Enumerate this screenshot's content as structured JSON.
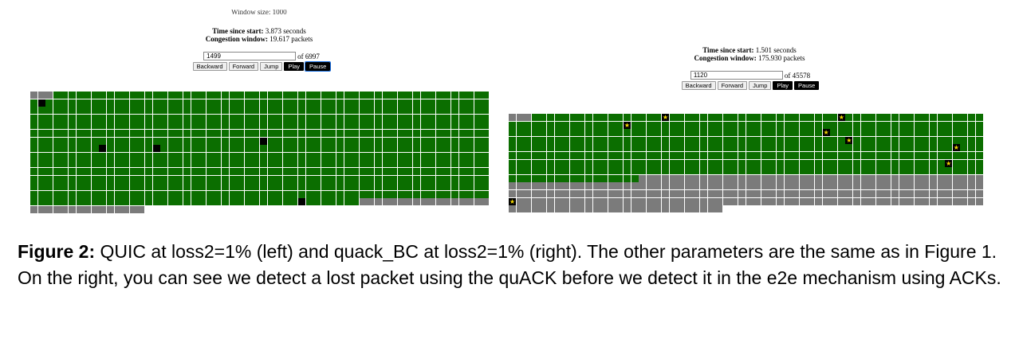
{
  "left": {
    "cut_text": "Window size: 1000",
    "time_label": "Time since start:",
    "time_value": "3.873 seconds",
    "cwnd_label": "Congestion window:",
    "cwnd_value": "19.617 packets",
    "frame_value": "1499",
    "frame_total": "of 6997",
    "buttons": {
      "backward": "Backward",
      "forward": "Forward",
      "jump": "Jump",
      "play": "Play",
      "pause": "Pause"
    }
  },
  "right": {
    "time_label": "Time since start:",
    "time_value": "1.501 seconds",
    "cwnd_label": "Congestion window:",
    "cwnd_value": "175.930 packets",
    "frame_value": "1120",
    "frame_total": "of 45578",
    "buttons": {
      "backward": "Backward",
      "forward": "Forward",
      "jump": "Jump",
      "play": "Play",
      "pause": "Pause"
    }
  },
  "legend": {
    "green": "#0b6e00",
    "black": "#000000",
    "gray": "#7b7b7b",
    "star": "#f5d800"
  },
  "caption": {
    "label": "Figure 2:",
    "text": " QUIC at loss2=1% (left) and quack_BC at loss2=1% (right). The other parameters are the same as in Figure 1. On the right, you can see we detect a lost packet using the quACK before we detect it in the e2e mechanism using ACKs."
  }
}
